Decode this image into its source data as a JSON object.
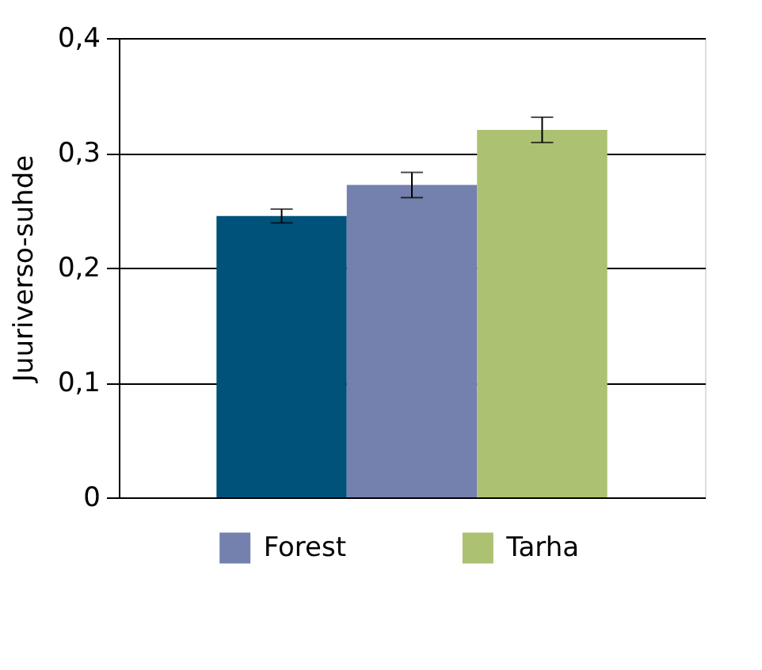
{
  "chart_data": {
    "type": "bar",
    "ylabel": "Juuriverso-suhde",
    "categories": [
      null
    ],
    "series": [
      {
        "color": "#00527a",
        "values": [
          0.245
        ],
        "errors": [
          0.006
        ]
      },
      {
        "name": "Forest",
        "color": "#7480ad",
        "values": [
          0.272
        ],
        "errors": [
          0.011
        ]
      },
      {
        "name": "Tarha",
        "color": "#adc173",
        "values": [
          0.32
        ],
        "errors": [
          0.011
        ]
      }
    ],
    "ylim": [
      0,
      0.4
    ],
    "yticks": [
      {
        "value": 0,
        "label": "0"
      },
      {
        "value": 0.1,
        "label": "0,1"
      },
      {
        "value": 0.2,
        "label": "0,2"
      },
      {
        "value": 0.3,
        "label": "0,3"
      },
      {
        "value": 0.4,
        "label": "0,4"
      }
    ],
    "grid": "y",
    "legend": "bottom"
  }
}
